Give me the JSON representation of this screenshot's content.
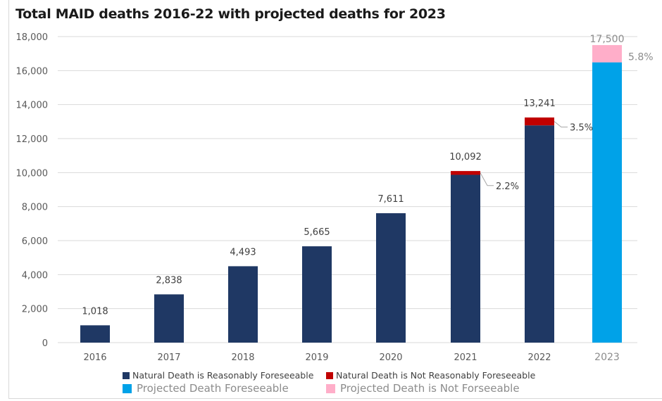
{
  "chart_data": {
    "type": "bar",
    "stacked": true,
    "title": "Total MAID deaths 2016-22 with projected deaths for 2023",
    "xlabel": "",
    "ylabel": "",
    "ylim": [
      0,
      18000
    ],
    "yticks": [
      0,
      2000,
      4000,
      6000,
      8000,
      10000,
      12000,
      14000,
      16000,
      18000
    ],
    "ytick_labels": [
      "0",
      "2,000",
      "4,000",
      "6,000",
      "8,000",
      "10,000",
      "12,000",
      "14,000",
      "16,000",
      "18,000"
    ],
    "grid": true,
    "categories": [
      "2016",
      "2017",
      "2018",
      "2019",
      "2020",
      "2021",
      "2022",
      "2023"
    ],
    "series": [
      {
        "name": "Natural Death is Reasonably Foreseeable",
        "color": "#1f3864",
        "values": [
          1018,
          2838,
          4493,
          5665,
          7611,
          9870,
          12778,
          0
        ]
      },
      {
        "name": "Natural Death is Not Reasonably Foreseeable",
        "color": "#c00000",
        "values": [
          0,
          0,
          0,
          0,
          0,
          222,
          463,
          0
        ]
      },
      {
        "name": "Projected Death Foreseeable",
        "color": "#00a2e8",
        "values": [
          0,
          0,
          0,
          0,
          0,
          0,
          0,
          16485
        ]
      },
      {
        "name": "Projected Death is Not Forseeable",
        "color": "#ffaec9",
        "values": [
          0,
          0,
          0,
          0,
          0,
          0,
          0,
          1015
        ]
      }
    ],
    "totals": [
      1018,
      2838,
      4493,
      5665,
      7611,
      10092,
      13241,
      17500
    ],
    "total_labels": [
      "1,018",
      "2,838",
      "4,493",
      "5,665",
      "7,611",
      "10,092",
      "13,241",
      "17,500"
    ],
    "percent_annotations": [
      {
        "category": "2021",
        "label": "2.2%"
      },
      {
        "category": "2022",
        "label": "3.5%"
      },
      {
        "category": "2023",
        "label": "5.8%"
      }
    ],
    "legend_position": "bottom",
    "legend": [
      {
        "label": "Natural Death is Reasonably Foreseeable",
        "color": "#1f3864"
      },
      {
        "label": "Natural Death is Not Reasonably Foreseeable",
        "color": "#c00000"
      },
      {
        "label": "Projected Death Foreseeable",
        "color": "#00a2e8"
      },
      {
        "label": "Projected Death is Not Forseeable",
        "color": "#ffaec9"
      }
    ]
  }
}
